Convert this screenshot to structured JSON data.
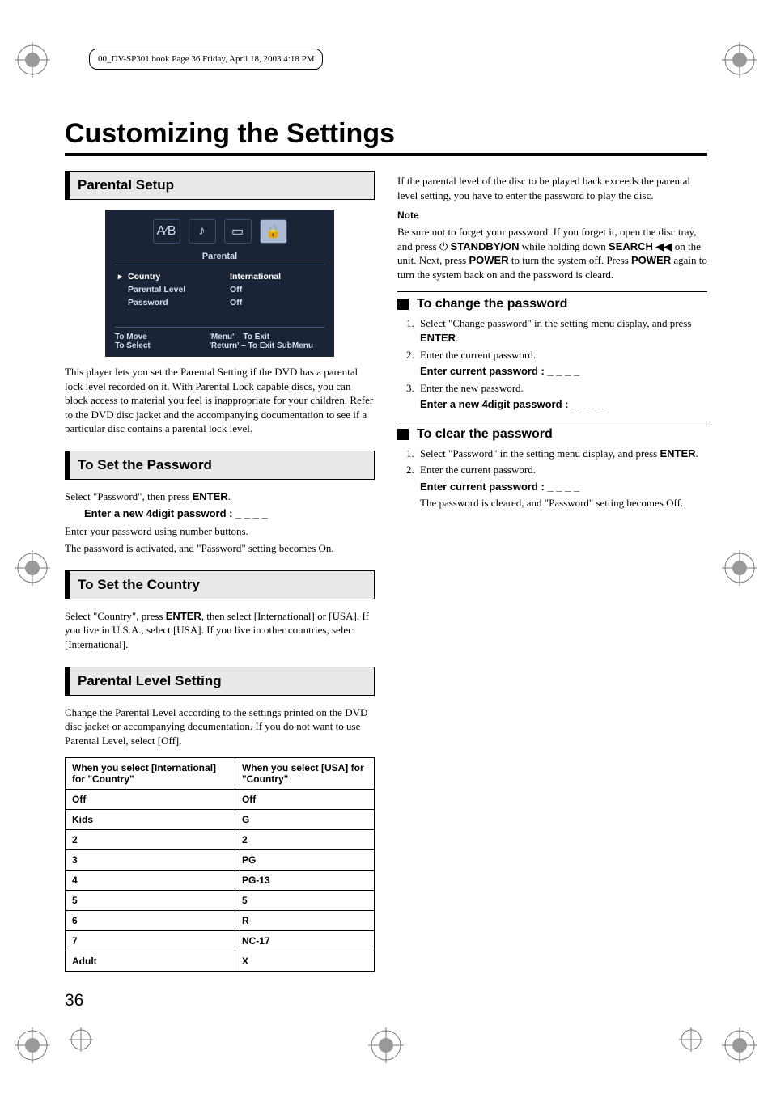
{
  "meta": {
    "book_header": "00_DV-SP301.book  Page 36  Friday, April 18, 2003  4:18 PM",
    "page_number": "36",
    "main_title": "Customizing the Settings"
  },
  "osd": {
    "tab_label": "Parental",
    "rows": [
      {
        "label": "Country",
        "value": "International",
        "selected": true
      },
      {
        "label": "Parental Level",
        "value": "Off",
        "selected": false
      },
      {
        "label": "Password",
        "value": "Off",
        "selected": false
      }
    ],
    "footer": [
      {
        "left": "To Move",
        "right": "'Menu' – To Exit"
      },
      {
        "left": "To Select",
        "right": "'Return' – To Exit SubMenu"
      }
    ],
    "icons": [
      "A⁄B",
      "♪",
      "▭",
      "🔒"
    ]
  },
  "left": {
    "parental_setup": {
      "title": "Parental Setup",
      "body": "This player lets you set the Parental Setting if the DVD has a parental lock level recorded on it. With Parental Lock capable discs, you can block access to material you feel is inappropriate for your children. Refer to the DVD disc jacket and the accompanying documentation to see if a particular disc contains a parental lock level."
    },
    "set_password": {
      "title": "To Set the Password",
      "line1_a": "Select \"Password\", then press ",
      "line1_b": "ENTER",
      "line1_c": ".",
      "prompt": "Enter a new 4digit password : _ _ _ _",
      "line2": "Enter your password using number buttons.",
      "line3": "The password is activated, and \"Password\" setting becomes On."
    },
    "set_country": {
      "title": "To Set the Country",
      "line_a": "Select \"Country\", press ",
      "line_b": "ENTER",
      "line_c": ", then select [International] or [USA]. If you live in U.S.A., select [USA]. If you live in other countries, select [International]."
    },
    "parental_level": {
      "title": "Parental Level Setting",
      "body": "Change the Parental Level according to the settings printed on the DVD disc jacket or accompanying documentation. If you do not want to use Parental Level, select [Off].",
      "table": {
        "header": [
          "When you select [International] for \"Country\"",
          "When you select [USA] for \"Country\""
        ],
        "rows": [
          [
            "Off",
            "Off"
          ],
          [
            "Kids",
            "G"
          ],
          [
            "2",
            "2"
          ],
          [
            "3",
            "PG"
          ],
          [
            "4",
            "PG-13"
          ],
          [
            "5",
            "5"
          ],
          [
            "6",
            "R"
          ],
          [
            "7",
            "NC-17"
          ],
          [
            "Adult",
            "X"
          ]
        ]
      }
    }
  },
  "right": {
    "intro": "If the parental level of the disc to be played back exceeds the parental level setting, you have to enter the password to play the disc.",
    "note_label": "Note",
    "note_parts": {
      "a": "Be sure not to forget your password. If you forget it, open the disc tray, and press ",
      "standby": "STANDBY/ON",
      "b": " while holding down ",
      "search": "SEARCH ",
      "c": " on the unit. Next, press ",
      "power1": "POWER",
      "d": " to turn the system off. Press ",
      "power2": "POWER",
      "e": " again to turn the system back on and the password is cleard."
    },
    "change_pw": {
      "title": "To change the password",
      "step1_a": "Select \"Change password\" in the setting menu display, and press ",
      "step1_b": "ENTER",
      "step1_c": ".",
      "step2": "Enter the current password.",
      "prompt2": "Enter current password : _ _ _ _",
      "step3": "Enter the new password.",
      "prompt3": "Enter a new 4digit password : _ _ _ _"
    },
    "clear_pw": {
      "title": "To clear the password",
      "step1_a": "Select \"Password\" in the setting menu display, and press ",
      "step1_b": "ENTER",
      "step1_c": ".",
      "step2": "Enter the current password.",
      "prompt2": "Enter current password : _ _ _ _",
      "step2b": "The password is cleared, and \"Password\" setting becomes Off."
    }
  }
}
